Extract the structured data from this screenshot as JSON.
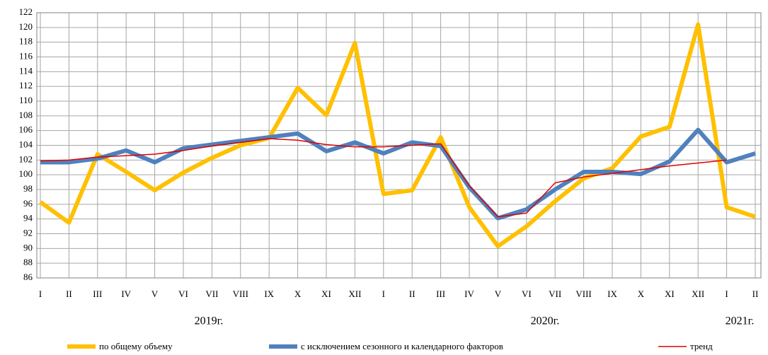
{
  "chart_data": {
    "type": "line",
    "categories": [
      "I",
      "II",
      "III",
      "IV",
      "V",
      "VI",
      "VII",
      "VIII",
      "IX",
      "X",
      "XI",
      "XII",
      "I",
      "II",
      "III",
      "IV",
      "V",
      "VI",
      "VII",
      "VIII",
      "IX",
      "X",
      "XI",
      "XII",
      "I",
      "II"
    ],
    "year_labels": [
      "2019г.",
      "2020г.",
      "2021г."
    ],
    "ylim": [
      86,
      122
    ],
    "yticks": [
      86,
      88,
      90,
      92,
      94,
      96,
      98,
      100,
      102,
      104,
      106,
      108,
      110,
      112,
      114,
      116,
      118,
      120,
      122
    ],
    "grid": true,
    "legend": "bottom",
    "series": [
      {
        "name": "по общему объему",
        "color": "#ffc000",
        "width": 6,
        "values": [
          96.3,
          93.5,
          102.8,
          100.4,
          97.9,
          100.3,
          102.3,
          104.0,
          105.0,
          111.8,
          108.1,
          117.9,
          97.4,
          97.9,
          105.1,
          95.6,
          90.3,
          93.0,
          96.4,
          99.5,
          100.9,
          105.2,
          106.5,
          120.4,
          95.6,
          94.3
        ]
      },
      {
        "name": "с исключением  сезонного и календарного факторов",
        "color": "#4f81bd",
        "width": 6,
        "values": [
          101.7,
          101.7,
          102.2,
          103.3,
          101.7,
          103.6,
          104.1,
          104.6,
          105.1,
          105.6,
          103.2,
          104.4,
          102.9,
          104.4,
          103.9,
          98.3,
          94.1,
          95.3,
          98.0,
          100.4,
          100.4,
          100.1,
          101.8,
          106.1,
          101.7,
          102.9
        ]
      },
      {
        "name": "тренд",
        "color": "#e00000",
        "width": 1.5,
        "values": [
          101.9,
          102.0,
          102.4,
          102.6,
          102.8,
          103.3,
          103.9,
          104.4,
          104.9,
          104.7,
          104.1,
          103.8,
          103.8,
          104.0,
          104.2,
          98.5,
          94.3,
          94.8,
          98.9,
          99.7,
          100.2,
          100.7,
          101.2,
          101.6,
          102.0,
          null
        ]
      }
    ]
  }
}
